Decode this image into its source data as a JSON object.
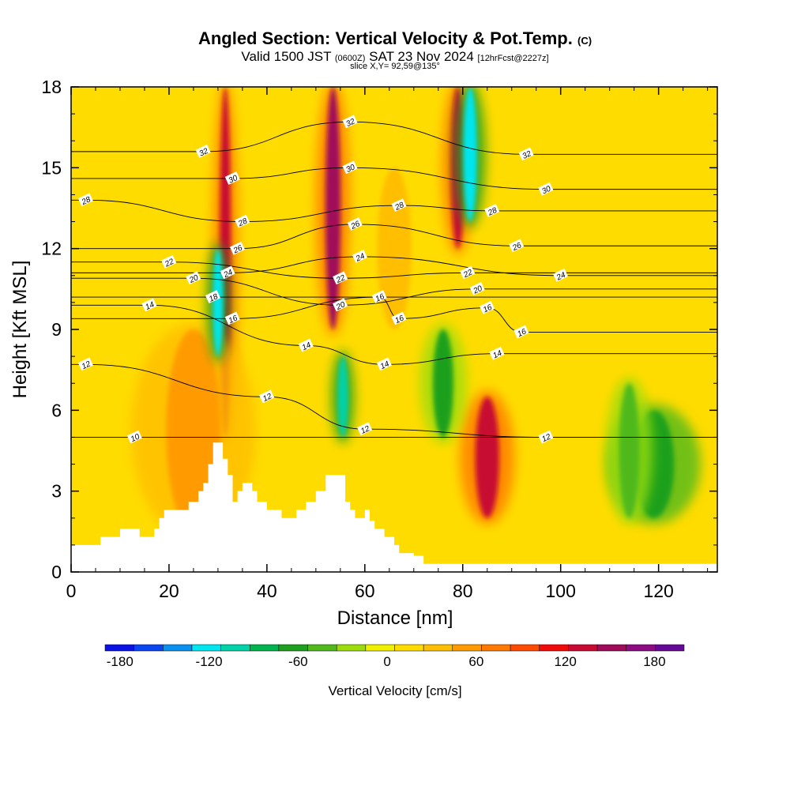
{
  "title": {
    "main": "Angled Section: Vertical Velocity & Pot.Temp.",
    "unit_tag": "(C)",
    "valid_prefix": "Valid 1500 JST",
    "valid_zulu": "(0600Z)",
    "valid_date": "SAT 23 Nov 2024",
    "fcst": "[12hrFcst@2227z]",
    "slice": "slice X,Y= 92,59@135°"
  },
  "chart_data": {
    "type": "heatmap",
    "xlabel": "Distance [nm]",
    "ylabel": "Height [Kft MSL]",
    "xlim": [
      0,
      132
    ],
    "ylim": [
      0,
      18
    ],
    "x_ticks": [
      "0",
      "20",
      "40",
      "60",
      "80",
      "100",
      "120"
    ],
    "y_ticks": [
      "0",
      "3",
      "6",
      "9",
      "12",
      "15",
      "18"
    ],
    "colorbar": {
      "label": "Vertical Velocity [cm/s]",
      "range": [
        -190,
        200
      ],
      "tick_labels": [
        "-180",
        "-120",
        "-60",
        "0",
        "60",
        "120",
        "180"
      ],
      "colors": [
        "#0a12e6",
        "#0a46f0",
        "#0a91f0",
        "#00e6f0",
        "#00d2aa",
        "#00b450",
        "#1ea01e",
        "#50b91e",
        "#9bdc0a",
        "#f0f000",
        "#ffdc00",
        "#ffbe00",
        "#ff9b00",
        "#ff7800",
        "#ff4b00",
        "#f00a0a",
        "#c80a32",
        "#a00a5a",
        "#8c0a82",
        "#640a96"
      ]
    },
    "terrain_kft": [
      [
        0,
        1.0
      ],
      [
        5,
        1.0
      ],
      [
        6,
        1.3
      ],
      [
        9,
        1.3
      ],
      [
        10,
        1.6
      ],
      [
        13,
        1.6
      ],
      [
        14,
        1.3
      ],
      [
        16,
        1.3
      ],
      [
        17,
        1.6
      ],
      [
        18,
        2.0
      ],
      [
        19,
        2.3
      ],
      [
        23,
        2.3
      ],
      [
        24,
        2.6
      ],
      [
        25,
        2.6
      ],
      [
        26,
        3.0
      ],
      [
        27,
        3.3
      ],
      [
        28,
        4.0
      ],
      [
        29,
        4.8
      ],
      [
        30,
        4.8
      ],
      [
        31,
        4.2
      ],
      [
        32,
        3.6
      ],
      [
        33,
        2.6
      ],
      [
        34,
        3.0
      ],
      [
        35,
        3.3
      ],
      [
        36,
        3.3
      ],
      [
        37,
        3.0
      ],
      [
        38,
        2.6
      ],
      [
        40,
        2.3
      ],
      [
        42,
        2.3
      ],
      [
        43,
        2.0
      ],
      [
        45,
        2.0
      ],
      [
        46,
        2.3
      ],
      [
        48,
        2.6
      ],
      [
        50,
        3.0
      ],
      [
        52,
        3.6
      ],
      [
        55,
        3.6
      ],
      [
        56,
        2.6
      ],
      [
        57,
        2.3
      ],
      [
        58,
        2.0
      ],
      [
        60,
        2.3
      ],
      [
        61,
        1.9
      ],
      [
        62,
        1.6
      ],
      [
        64,
        1.3
      ],
      [
        66,
        1.0
      ],
      [
        67,
        0.7
      ],
      [
        70,
        0.6
      ],
      [
        72,
        0.3
      ],
      [
        132,
        0.3
      ]
    ],
    "updrafts": [
      {
        "x": 31.5,
        "y_from": 5.0,
        "y_to": 18,
        "width_nm": 1.6,
        "value": 130
      },
      {
        "x": 53.5,
        "y_from": 9.0,
        "y_to": 18,
        "width_nm": 2.2,
        "value": 150
      },
      {
        "x": 79.0,
        "y_from": 12.0,
        "y_to": 18,
        "width_nm": 2.0,
        "value": 140
      },
      {
        "x": 85.0,
        "y_from": 2.0,
        "y_to": 6.5,
        "width_nm": 3.5,
        "value": 130
      },
      {
        "x": 25.0,
        "y_from": 1.5,
        "y_to": 9,
        "width_nm": 8.0,
        "value": 50
      },
      {
        "x": 66.0,
        "y_from": 9.0,
        "y_to": 15,
        "width_nm": 5.0,
        "value": 40
      }
    ],
    "downdrafts": [
      {
        "x": 30.0,
        "y_from": 8.0,
        "y_to": 12,
        "width_nm": 1.5,
        "value": -120
      },
      {
        "x": 55.5,
        "y_from": 5.0,
        "y_to": 8,
        "width_nm": 1.5,
        "value": -110
      },
      {
        "x": 81.5,
        "y_from": 13.0,
        "y_to": 18,
        "width_nm": 2.0,
        "value": -120
      },
      {
        "x": 119.0,
        "y_from": 2.0,
        "y_to": 6,
        "width_nm": 6.0,
        "value": -70
      },
      {
        "x": 114.0,
        "y_from": 2.0,
        "y_to": 7,
        "width_nm": 3.0,
        "value": -50
      },
      {
        "x": 76.0,
        "y_from": 5.0,
        "y_to": 9,
        "width_nm": 3.0,
        "value": -60
      }
    ],
    "theta_contours": [
      {
        "label": "10",
        "level": 10,
        "labels": [
          [
            13,
            5.0
          ]
        ]
      },
      {
        "label": "12",
        "level": 12,
        "labels": [
          [
            3,
            7.7
          ],
          [
            40,
            6.5
          ],
          [
            60,
            5.3
          ],
          [
            97,
            5.0
          ]
        ]
      },
      {
        "label": "14",
        "level": 14,
        "labels": [
          [
            16,
            9.9
          ],
          [
            48,
            8.4
          ],
          [
            64,
            7.7
          ],
          [
            87,
            8.1
          ]
        ]
      },
      {
        "label": "16",
        "level": 16,
        "labels": [
          [
            33,
            9.4
          ],
          [
            63,
            10.2
          ],
          [
            67,
            9.4
          ],
          [
            85,
            9.8
          ],
          [
            92,
            8.9
          ]
        ]
      },
      {
        "label": "18",
        "level": 18,
        "labels": [
          [
            29,
            10.2
          ]
        ]
      },
      {
        "label": "20",
        "level": 20,
        "labels": [
          [
            25,
            10.9
          ],
          [
            55,
            9.9
          ],
          [
            83,
            10.5
          ]
        ]
      },
      {
        "label": "22",
        "level": 22,
        "labels": [
          [
            20,
            11.5
          ],
          [
            55,
            10.9
          ],
          [
            81,
            11.1
          ]
        ]
      },
      {
        "label": "24",
        "level": 24,
        "labels": [
          [
            32,
            11.1
          ],
          [
            59,
            11.7
          ],
          [
            100,
            11.0
          ]
        ]
      },
      {
        "label": "26",
        "level": 26,
        "labels": [
          [
            34,
            12.0
          ],
          [
            58,
            12.9
          ],
          [
            91,
            12.1
          ]
        ]
      },
      {
        "label": "28",
        "level": 28,
        "labels": [
          [
            3,
            13.8
          ],
          [
            35,
            13.0
          ],
          [
            67,
            13.6
          ],
          [
            86,
            13.4
          ]
        ]
      },
      {
        "label": "30",
        "level": 30,
        "labels": [
          [
            33,
            14.6
          ],
          [
            57,
            15.0
          ],
          [
            97,
            14.2
          ]
        ]
      },
      {
        "label": "32",
        "level": 32,
        "labels": [
          [
            27,
            15.6
          ],
          [
            57,
            16.7
          ],
          [
            93,
            15.5
          ]
        ]
      }
    ]
  }
}
